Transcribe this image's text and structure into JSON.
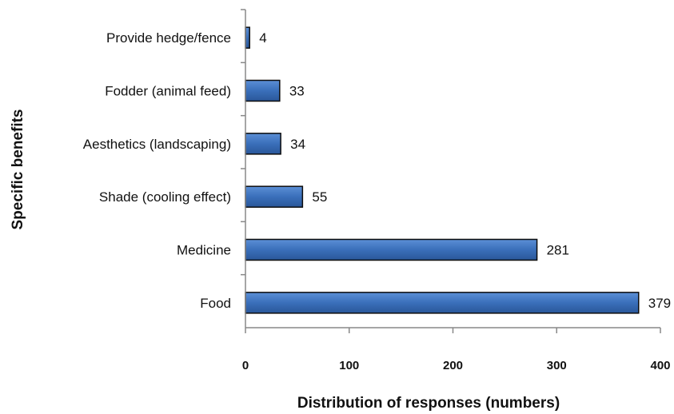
{
  "chart_data": {
    "type": "bar",
    "orientation": "horizontal",
    "categories": [
      "Provide hedge/fence",
      "Fodder (animal feed)",
      "Aesthetics (landscaping)",
      "Shade (cooling effect)",
      "Medicine",
      "Food"
    ],
    "values": [
      4,
      33,
      34,
      55,
      281,
      379
    ],
    "data_labels": [
      "4",
      "33",
      "34",
      "55",
      "281",
      "379"
    ],
    "xlabel": "Distribution of responses (numbers)",
    "ylabel": "Specific benefits",
    "xlim": [
      0,
      400
    ],
    "xticks": [
      0,
      100,
      200,
      300,
      400
    ],
    "xtick_labels": [
      "0",
      "100",
      "200",
      "300",
      "400"
    ],
    "grid": false,
    "legend": "none",
    "bar_color": "#3a6fba",
    "bar_edge_color": "#0d0d0d"
  }
}
